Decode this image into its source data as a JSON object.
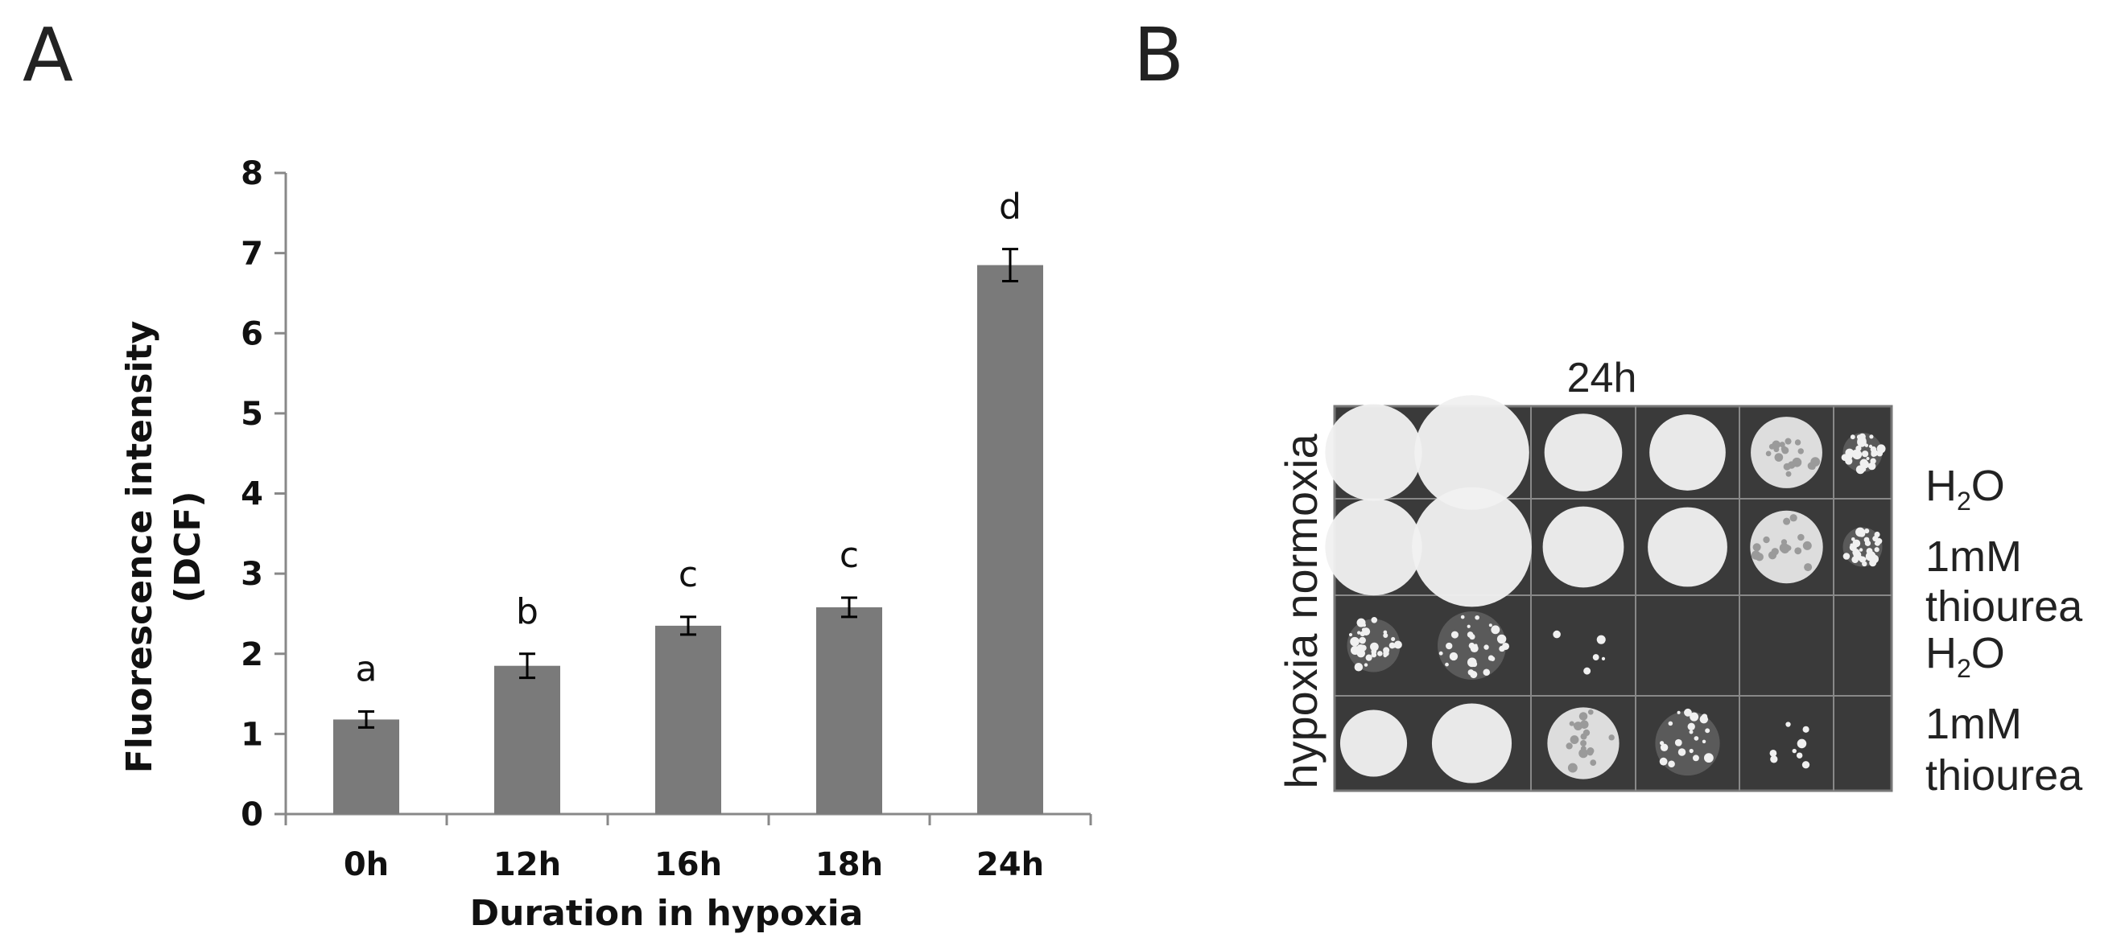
{
  "panels": {
    "a_letter": "A",
    "b_letter": "B"
  },
  "chart_data": {
    "type": "bar",
    "categories": [
      "0h",
      "12h",
      "16h",
      "18h",
      "24h"
    ],
    "values": [
      1.18,
      1.85,
      2.35,
      2.58,
      6.85
    ],
    "errors": [
      0.1,
      0.15,
      0.11,
      0.12,
      0.2
    ],
    "significance": [
      "a",
      "b",
      "c",
      "c",
      "d"
    ],
    "xlabel": "Duration in hypoxia",
    "ylabel_line1": "Fluorescence intensity",
    "ylabel_line2": "(DCF)",
    "ylim": [
      0,
      8
    ],
    "yticks": [
      0,
      1,
      2,
      3,
      4,
      5,
      6,
      7,
      8
    ],
    "bar_color": "#7a7a7a",
    "grid": false,
    "legend": "none"
  },
  "plate": {
    "title": "24h",
    "condition_labels": {
      "hypoxia": "hypoxia",
      "normoxia": "normoxia"
    },
    "row_labels": [
      {
        "prefix": "H",
        "sub": "2",
        "suffix": "O"
      },
      {
        "line1": "1mM",
        "line2": "thiourea"
      },
      {
        "prefix": "H",
        "sub": "2",
        "suffix": "O"
      },
      {
        "line1": "1mM",
        "line2": "thiourea"
      }
    ],
    "growth_levels": [
      [
        1.0,
        1.0,
        0.75,
        0.7,
        0.55,
        0.35
      ],
      [
        1.0,
        1.0,
        0.75,
        0.7,
        0.55,
        0.35
      ],
      [
        0.35,
        0.3,
        0.05,
        0,
        0,
        0
      ],
      [
        0.8,
        0.75,
        0.5,
        0.25,
        0.1,
        0
      ]
    ],
    "background_color": "#3a3a3a",
    "colony_color": "#f0f0f0"
  }
}
